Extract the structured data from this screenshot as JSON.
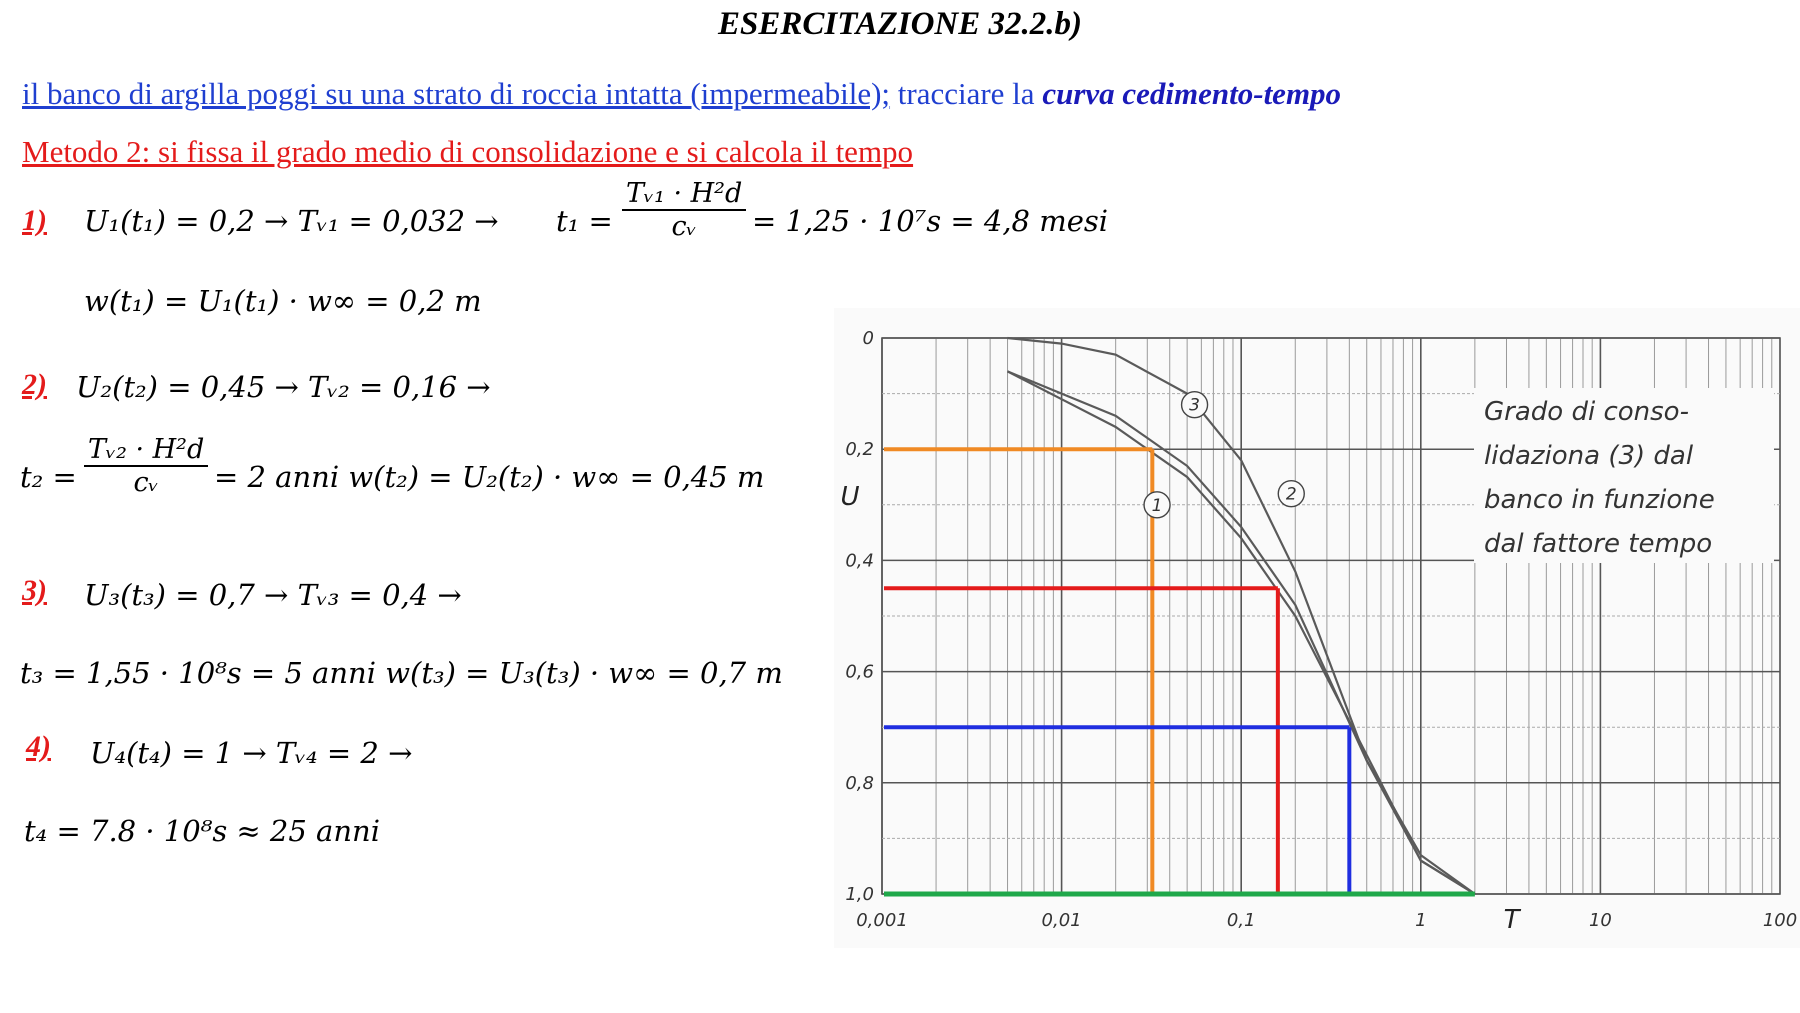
{
  "title": "ESERCITAZIONE 32.2.b)",
  "intro": {
    "underlined": "il banco di argilla poggi su una strato di roccia intatta (impermeabile);",
    "plain": " tracciare la ",
    "emphasis": "curva cedimento-tempo"
  },
  "method": "Metodo 2: si fissa il grado medio di consolidazione e si calcola il tempo",
  "steps": [
    {
      "number": "1)",
      "line1": "U₁(t₁) = 0,2 → Tᵥ₁ = 0,032 →",
      "t_label": "t₁ =",
      "frac_num": "Tᵥ₁ · H²d",
      "frac_den": "cᵥ",
      "t_result": "= 1,25 · 10⁷s = 4,8 mesi",
      "line2": "w(t₁) = U₁(t₁) · w∞ = 0,2 m"
    },
    {
      "number": "2)",
      "line1": "U₂(t₂) = 0,45 → Tᵥ₂ = 0,16 →",
      "t_label": "t₂ =",
      "frac_num": "Tᵥ₂ · H²d",
      "frac_den": "cᵥ",
      "t_result": "= 2 anni   w(t₂) = U₂(t₂) · w∞ = 0,45 m"
    },
    {
      "number": "3)",
      "line1": "U₃(t₃) = 0,7 → Tᵥ₃ = 0,4 →",
      "line2": "t₃ = 1,55 · 10⁸s = 5 anni   w(t₃) = U₃(t₃) · w∞ = 0,7 m"
    },
    {
      "number": "4)",
      "line1": "U₄(t₄) = 1 → Tᵥ₄ = 2 →",
      "line2": "t₄ = 7.8 · 10⁸s ≈ 25 anni"
    }
  ],
  "chart_data": {
    "type": "line",
    "x_scale": "log",
    "xlim": [
      0.001,
      100
    ],
    "ylim": [
      0,
      1.0
    ],
    "y_inverted": true,
    "x_ticks": [
      "0,001",
      "0,01",
      "0,1",
      "1",
      "10",
      "100"
    ],
    "x_tick_values": [
      0.001,
      0.01,
      0.1,
      1,
      10,
      100
    ],
    "y_ticks": [
      "0",
      "0,2",
      "0,4",
      "0,6",
      "0,8",
      "1,0"
    ],
    "y_tick_values": [
      0,
      0.2,
      0.4,
      0.6,
      0.8,
      1.0
    ],
    "xlabel": "T",
    "ylabel": "U",
    "annotation": [
      "Grado di conso-",
      "lidaziona (3) dal",
      "banco in funzione",
      "dal fattore tempo"
    ],
    "curve_labels": [
      "1",
      "2",
      "3"
    ],
    "series": [
      {
        "name": "1",
        "x": [
          0.005,
          0.01,
          0.02,
          0.05,
          0.1,
          0.2,
          0.5,
          1,
          2
        ],
        "y": [
          0.06,
          0.11,
          0.16,
          0.25,
          0.36,
          0.5,
          0.75,
          0.94,
          1.0
        ]
      },
      {
        "name": "2",
        "x": [
          0.005,
          0.01,
          0.02,
          0.05,
          0.1,
          0.2,
          0.5,
          1,
          2
        ],
        "y": [
          0.06,
          0.1,
          0.14,
          0.23,
          0.34,
          0.48,
          0.76,
          0.93,
          1.0
        ]
      },
      {
        "name": "3",
        "x": [
          0.005,
          0.01,
          0.02,
          0.05,
          0.1,
          0.2,
          0.5,
          1,
          2
        ],
        "y": [
          0.0,
          0.01,
          0.03,
          0.1,
          0.22,
          0.42,
          0.76,
          0.94,
          1.0
        ]
      }
    ],
    "highlights": [
      {
        "color": "#f08a24",
        "U": 0.2,
        "T": 0.032
      },
      {
        "color": "#e41b1b",
        "U": 0.45,
        "T": 0.16
      },
      {
        "color": "#1f2ee0",
        "U": 0.7,
        "T": 0.4
      },
      {
        "color": "#1fa84a",
        "U": 1.0,
        "T": 2
      }
    ]
  }
}
